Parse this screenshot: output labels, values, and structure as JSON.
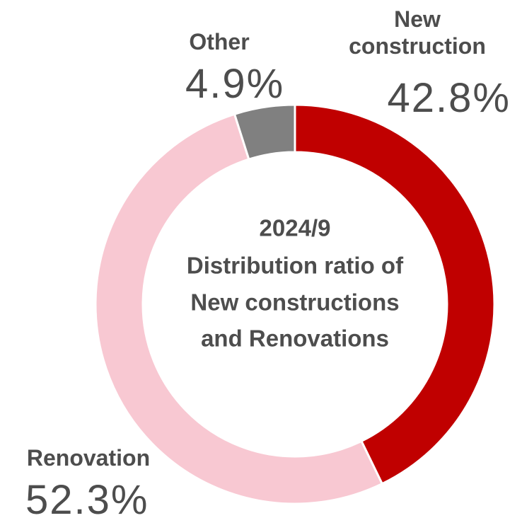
{
  "chart_data": {
    "type": "donut",
    "title": [
      "2024/9",
      "Distribution ratio of",
      "New constructions",
      "and Renovations"
    ],
    "categories": [
      "New construction",
      "Renovation",
      "Other"
    ],
    "values": [
      42.8,
      52.3,
      4.9
    ],
    "value_labels": [
      "42.8%",
      "52.3%",
      "4.9%"
    ],
    "colors": [
      "#c00000",
      "#f8c8d2",
      "#808080"
    ]
  }
}
